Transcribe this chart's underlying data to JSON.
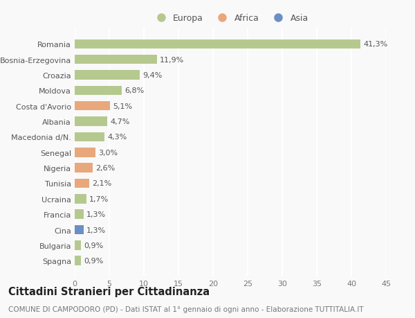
{
  "countries": [
    "Romania",
    "Bosnia-Erzegovina",
    "Croazia",
    "Moldova",
    "Costa d'Avorio",
    "Albania",
    "Macedonia d/N.",
    "Senegal",
    "Nigeria",
    "Tunisia",
    "Ucraina",
    "Francia",
    "Cina",
    "Bulgaria",
    "Spagna"
  ],
  "values": [
    41.3,
    11.9,
    9.4,
    6.8,
    5.1,
    4.7,
    4.3,
    3.0,
    2.6,
    2.1,
    1.7,
    1.3,
    1.3,
    0.9,
    0.9
  ],
  "continents": [
    "Europa",
    "Europa",
    "Europa",
    "Europa",
    "Africa",
    "Europa",
    "Europa",
    "Africa",
    "Africa",
    "Africa",
    "Europa",
    "Europa",
    "Asia",
    "Europa",
    "Europa"
  ],
  "colors": {
    "Europa": "#b5c98e",
    "Africa": "#e8a87c",
    "Asia": "#6b8fc4"
  },
  "xlim": [
    0,
    45
  ],
  "xticks": [
    0,
    5,
    10,
    15,
    20,
    25,
    30,
    35,
    40,
    45
  ],
  "title": "Cittadini Stranieri per Cittadinanza",
  "subtitle": "COMUNE DI CAMPODORO (PD) - Dati ISTAT al 1° gennaio di ogni anno - Elaborazione TUTTITALIA.IT",
  "background_color": "#f9f9f9",
  "grid_color": "#ffffff",
  "label_fontsize": 8,
  "value_fontsize": 8,
  "title_fontsize": 10.5,
  "subtitle_fontsize": 7.5
}
